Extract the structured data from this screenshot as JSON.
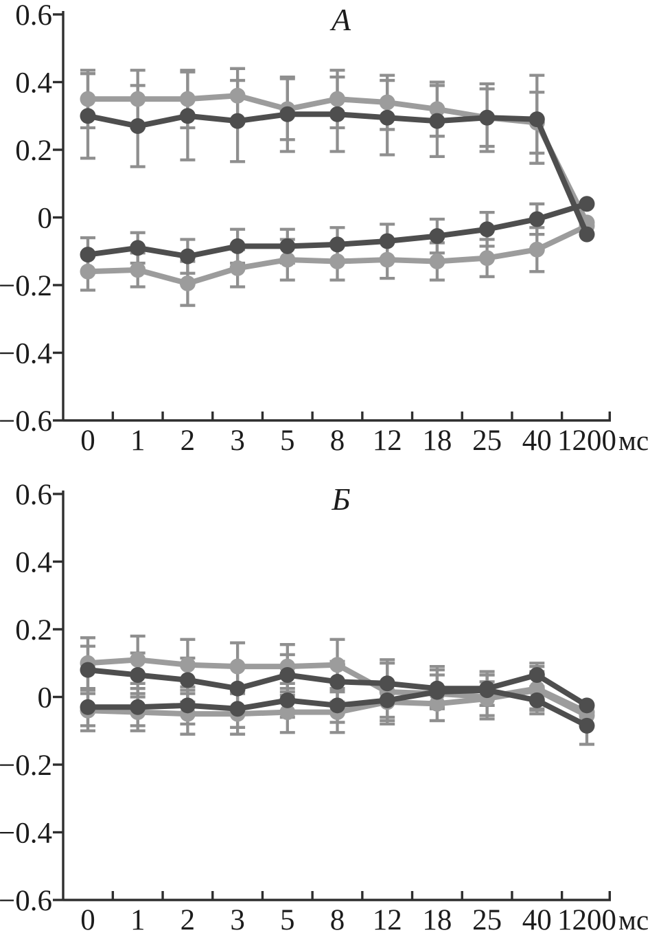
{
  "figure": {
    "unit_label": "мс",
    "background": "#ffffff",
    "colors": {
      "dark_series": "#4e4e4e",
      "light_series": "#9c9c9c",
      "error_bar": "#8f8f8f",
      "axis": "#2e2e2e",
      "text": "#1c1c1c"
    }
  },
  "chart_data": [
    {
      "type": "line",
      "title": "А",
      "xlabel": "мс",
      "ylabel": "",
      "grid": false,
      "legend_position": "none",
      "ylim": [
        -0.6,
        0.6
      ],
      "yticks": [
        0.6,
        0.4,
        0.2,
        0,
        -0.2,
        -0.4,
        -0.6
      ],
      "ytick_labels": [
        "0.6",
        "0.4",
        "0.2",
        "0",
        "−0.2",
        "−0.4",
        "−0.6"
      ],
      "categories": [
        "0",
        "1",
        "2",
        "3",
        "5",
        "8",
        "12",
        "18",
        "25",
        "40",
        "1200"
      ],
      "series": [
        {
          "name": "light-top",
          "color_key": "light_series",
          "values": [
            0.35,
            0.35,
            0.35,
            0.36,
            0.32,
            0.35,
            0.34,
            0.32,
            0.295,
            0.28,
            -0.015
          ],
          "errors": [
            0.085,
            0.085,
            0.085,
            0.08,
            0.09,
            0.085,
            0.08,
            0.08,
            0.085,
            0.09,
            0
          ]
        },
        {
          "name": "light-bottom",
          "color_key": "light_series",
          "values": [
            -0.16,
            -0.155,
            -0.195,
            -0.15,
            -0.125,
            -0.13,
            -0.125,
            -0.13,
            -0.12,
            -0.095,
            -0.025
          ],
          "errors": [
            0.055,
            0.05,
            0.065,
            0.055,
            0.06,
            0.055,
            0.055,
            0.055,
            0.055,
            0.065,
            0
          ]
        },
        {
          "name": "dark-top",
          "color_key": "dark_series",
          "values": [
            0.3,
            0.27,
            0.3,
            0.285,
            0.305,
            0.305,
            0.295,
            0.285,
            0.295,
            0.29,
            -0.05
          ],
          "errors": [
            0.125,
            0.12,
            0.13,
            0.12,
            0.11,
            0.11,
            0.11,
            0.105,
            0.1,
            0.13,
            0
          ]
        },
        {
          "name": "dark-bottom",
          "color_key": "dark_series",
          "values": [
            -0.11,
            -0.09,
            -0.115,
            -0.085,
            -0.085,
            -0.08,
            -0.07,
            -0.055,
            -0.035,
            -0.005,
            0.04
          ],
          "errors": [
            0.05,
            0.045,
            0.05,
            0.05,
            0.05,
            0.05,
            0.05,
            0.05,
            0.05,
            0.045,
            0
          ]
        }
      ]
    },
    {
      "type": "line",
      "title": "Б",
      "xlabel": "мс",
      "ylabel": "",
      "grid": false,
      "legend_position": "none",
      "ylim": [
        -0.6,
        0.6
      ],
      "yticks": [
        0.6,
        0.4,
        0.2,
        0,
        -0.2,
        -0.4,
        -0.6
      ],
      "ytick_labels": [
        "0.6",
        "0.4",
        "0.2",
        "0",
        "−0.2",
        "−0.4",
        "−0.6"
      ],
      "categories": [
        "0",
        "1",
        "2",
        "3",
        "5",
        "8",
        "12",
        "18",
        "25",
        "40",
        "1200"
      ],
      "series": [
        {
          "name": "light-top",
          "color_key": "light_series",
          "values": [
            0.1,
            0.11,
            0.095,
            0.09,
            0.09,
            0.095,
            0.015,
            0.01,
            0.0,
            0.025,
            -0.045
          ],
          "errors": [
            0.075,
            0.07,
            0.075,
            0.07,
            0.065,
            0.075,
            0.095,
            0.08,
            0.065,
            0.065,
            0
          ]
        },
        {
          "name": "light-bottom",
          "color_key": "light_series",
          "values": [
            -0.04,
            -0.045,
            -0.05,
            -0.05,
            -0.045,
            -0.045,
            -0.015,
            -0.02,
            -0.005,
            0.02,
            -0.055
          ],
          "errors": [
            0.06,
            0.055,
            0.06,
            0.06,
            0.06,
            0.06,
            0.055,
            0.05,
            0.05,
            0.055,
            0
          ]
        },
        {
          "name": "dark-top",
          "color_key": "dark_series",
          "values": [
            0.08,
            0.065,
            0.05,
            0.025,
            0.065,
            0.045,
            0.04,
            0.025,
            0.025,
            0.065,
            -0.025
          ],
          "errors": [
            0.07,
            0.065,
            0.065,
            0.065,
            0.06,
            0.06,
            0.06,
            0.055,
            0.05,
            0.035,
            0
          ]
        },
        {
          "name": "dark-bottom",
          "color_key": "dark_series",
          "values": [
            -0.03,
            -0.03,
            -0.025,
            -0.035,
            -0.01,
            -0.025,
            -0.01,
            0.015,
            0.02,
            -0.01,
            -0.085
          ],
          "errors": [
            0.055,
            0.055,
            0.055,
            0.055,
            0.05,
            0.05,
            0.05,
            0.05,
            0.045,
            0.04,
            0.055
          ]
        }
      ]
    }
  ]
}
